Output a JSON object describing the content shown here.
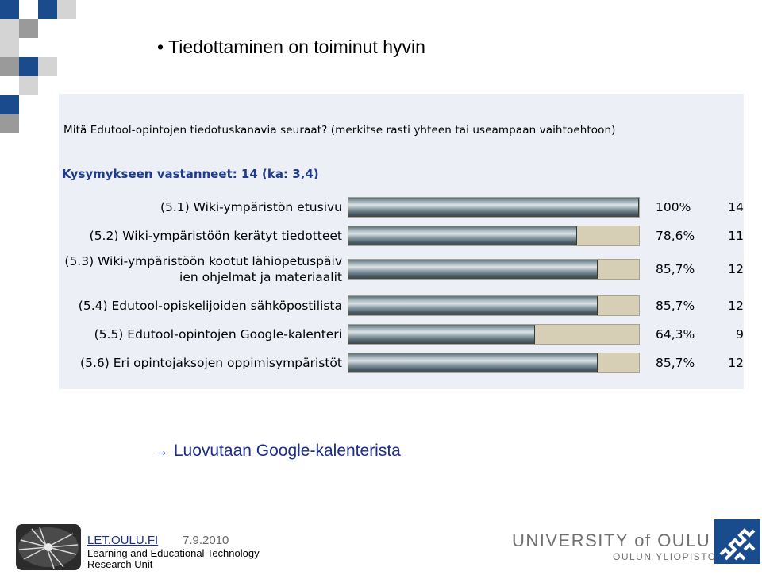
{
  "slide": {
    "title": "• Tiedottaminen on toiminut hyvin",
    "conclusion_arrow": "→",
    "conclusion_text": "Luovutaan Google-kalenterista",
    "colors": {
      "accent_blue": "#1a4b8c",
      "square_gray": "#9a9a9a",
      "square_light": "#d4d4d4"
    }
  },
  "survey": {
    "question": "Mitä Edutool-opintojen tiedotuskanavia seuraat? (merkitse rasti yhteen tai useampaan vaihtoehtoon)",
    "respondents": "Kysymykseen vastanneet: 14 (ka: 3,4)"
  },
  "chart_data": {
    "type": "bar",
    "orientation": "horizontal",
    "categories": [
      "(5.1) Wiki-ympäristön etusivu",
      "(5.2) Wiki-ympäristöön kerätyt tiedotteet",
      "(5.3) Wiki-ympäristöön kootut lähiopetuspäivien ohjelmat ja materiaalit",
      "(5.4) Edutool-opiskelijoiden sähköpostilista",
      "(5.5) Edutool-opintojen Google-kalenteri",
      "(5.6) Eri opintojaksojen oppimisympäristöt"
    ],
    "label_lines": [
      [
        "(5.1) Wiki-ympäristön etusivu"
      ],
      [
        "(5.2) Wiki-ympäristöön kerätyt tiedotteet"
      ],
      [
        "(5.3) Wiki-ympäristöön kootut lähiopetuspäiv",
        "ien ohjelmat ja materiaalit"
      ],
      [
        "(5.4) Edutool-opiskelijoiden sähköpostilista"
      ],
      [
        "(5.5) Edutool-opintojen Google-kalenteri"
      ],
      [
        "(5.6) Eri opintojaksojen oppimisympäristöt"
      ]
    ],
    "values": [
      100,
      78.6,
      85.7,
      85.7,
      64.3,
      85.7
    ],
    "value_labels": [
      "100%",
      "78,6%",
      "85,7%",
      "85,7%",
      "64,3%",
      "85,7%"
    ],
    "counts": [
      "14",
      "11",
      "12",
      "12",
      "9",
      "12"
    ],
    "xlim": [
      0,
      100
    ],
    "colors": {
      "bar": "#7f8f99",
      "track": "#d6cfb5",
      "panel": "#ecf0f6"
    }
  },
  "footer": {
    "link": "LET.OULU.FI",
    "date": "7.9.2010",
    "unit_line1": "Learning and Educational Technology",
    "unit_line2": "Research Unit",
    "university": "UNIVERSITY of OULU",
    "university_sub": "OULUN YLIOPISTO"
  }
}
